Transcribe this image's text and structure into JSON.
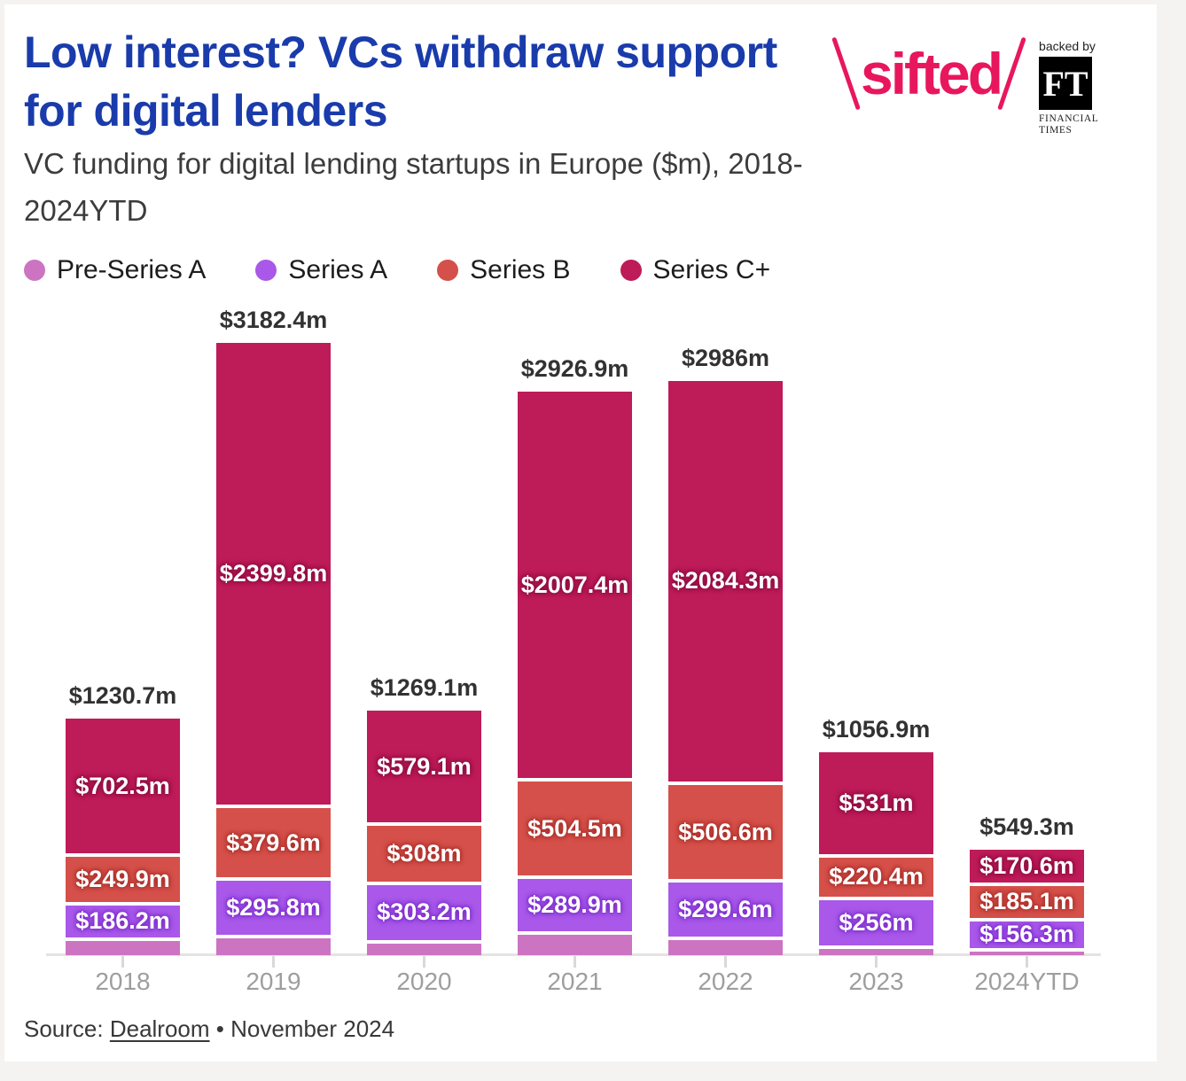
{
  "header": {
    "title_lines": [
      "Low interest? VCs withdraw support",
      "for digital lenders"
    ],
    "title_color": "#1a3bab",
    "subtitle_lines": [
      "VC funding for digital lending startups in Europe ($m), 2018-",
      "2024YTD"
    ]
  },
  "logo": {
    "sifted_text": "sifted",
    "sifted_color": "#e8175d",
    "backed_by": "backed by",
    "ft_initials": "FT",
    "ft_name_lines": [
      "FINANCIAL",
      "TIMES"
    ]
  },
  "legend": [
    {
      "label": "Pre-Series A",
      "color": "#cc74c2"
    },
    {
      "label": "Series A",
      "color": "#a958e9"
    },
    {
      "label": "Series B",
      "color": "#d5504a"
    },
    {
      "label": "Series C+",
      "color": "#be1b59"
    }
  ],
  "chart_data": {
    "type": "bar",
    "stacked": true,
    "value_unit": "$m",
    "categories": [
      "2018",
      "2019",
      "2020",
      "2021",
      "2022",
      "2023",
      "2024YTD"
    ],
    "series": [
      {
        "name": "Pre-Series A",
        "color": "#cc74c2",
        "glow": "#a452a0",
        "values": [
          92.1,
          107.2,
          78.8,
          125.1,
          95.5,
          49.5,
          37.3
        ],
        "labels": [
          "",
          "",
          "",
          "",
          "",
          "",
          ""
        ]
      },
      {
        "name": "Series A",
        "color": "#a958e9",
        "glow": "#7f30ce",
        "values": [
          186.2,
          295.8,
          303.2,
          289.9,
          299.6,
          256,
          156.3
        ],
        "labels": [
          "$186.2m",
          "$295.8m",
          "$303.2m",
          "$289.9m",
          "$299.6m",
          "$256m",
          "$156.3m"
        ]
      },
      {
        "name": "Series B",
        "color": "#d5504a",
        "glow": "#ac322d",
        "values": [
          249.9,
          379.6,
          308,
          504.5,
          506.6,
          220.4,
          185.1
        ],
        "labels": [
          "$249.9m",
          "$379.6m",
          "$308m",
          "$504.5m",
          "$506.6m",
          "$220.4m",
          "$185.1m"
        ]
      },
      {
        "name": "Series C+",
        "color": "#be1b59",
        "glow": "#8e0f42",
        "values": [
          702.5,
          2399.8,
          579.1,
          2007.4,
          2084.3,
          531,
          170.6
        ],
        "labels": [
          "$702.5m",
          "$2399.8m",
          "$579.1m",
          "$2007.4m",
          "$2084.3m",
          "$531m",
          "$170.6m"
        ]
      }
    ],
    "totals": [
      1230.7,
      3182.4,
      1269.1,
      2926.9,
      2986,
      1056.9,
      549.3
    ],
    "total_labels": [
      "$1230.7m",
      "$3182.4m",
      "$1269.1m",
      "$2926.9m",
      "$2986m",
      "$1056.9m",
      "$549.3m"
    ]
  },
  "source": {
    "prefix": "Source: ",
    "link": "Dealroom",
    "suffix": " • November 2024"
  }
}
